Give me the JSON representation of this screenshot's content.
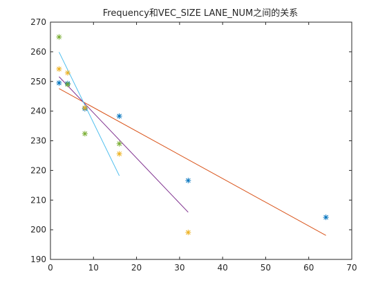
{
  "chart_data": {
    "type": "scatter",
    "title": "Frequency和VEC_SIZE LANE_NUM之间的关系",
    "xlabel": "",
    "ylabel": "",
    "xlim": [
      0,
      70
    ],
    "ylim": [
      190,
      270
    ],
    "xticks": [
      0,
      10,
      20,
      30,
      40,
      50,
      60,
      70
    ],
    "yticks": [
      190,
      200,
      210,
      220,
      230,
      240,
      250,
      260,
      270
    ],
    "grid": false,
    "legend": "none",
    "series": [
      {
        "color": "#0072BD",
        "marker": "*",
        "points": [
          [
            2,
            249.5
          ],
          [
            4,
            249.3
          ],
          [
            8,
            240.8
          ],
          [
            16,
            238.3
          ],
          [
            32,
            216.6
          ],
          [
            64,
            204.2
          ]
        ],
        "fit": [
          [
            2,
            247.6
          ],
          [
            64,
            198.1
          ]
        ],
        "fit_color": "#D95319"
      },
      {
        "color": "#EDB120",
        "marker": "*",
        "points": [
          [
            2,
            254.2
          ],
          [
            4,
            252.9
          ],
          [
            8,
            241.1
          ],
          [
            16,
            225.6
          ],
          [
            32,
            199.1
          ]
        ],
        "fit": [
          [
            2,
            251.6
          ],
          [
            32,
            205.9
          ]
        ],
        "fit_color": "#7E2F8E"
      },
      {
        "color": "#77AC30",
        "marker": "*",
        "points": [
          [
            2,
            265.0
          ],
          [
            4,
            249.0
          ],
          [
            8,
            232.4
          ],
          [
            16,
            229.0
          ]
        ],
        "fit": [
          [
            2,
            259.9
          ],
          [
            16,
            218.2
          ]
        ],
        "fit_color": "#4DBEEE"
      }
    ]
  }
}
